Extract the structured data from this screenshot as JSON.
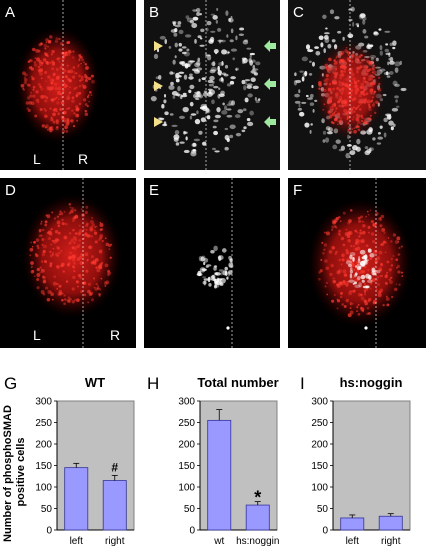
{
  "panels": [
    {
      "label": "A",
      "channel": "red"
    },
    {
      "label": "B",
      "channel": "white"
    },
    {
      "label": "C",
      "channel": "merge"
    },
    {
      "label": "D",
      "channel": "red"
    },
    {
      "label": "E",
      "channel": "white"
    },
    {
      "label": "F",
      "channel": "merge"
    }
  ],
  "orientation": {
    "left": "L",
    "right": "R"
  },
  "colors": {
    "red": "#e0201c",
    "bar": "#9999ff",
    "plot_bg": "#c0c0c0",
    "arrowhead": "#f5e08a",
    "arrow": "#9fe89f"
  },
  "chart_labels": {
    "g": "G",
    "h": "H",
    "i": "I"
  },
  "y_axis_label": [
    "Number of phosphoSMAD",
    "positive cells"
  ],
  "chart_data": [
    {
      "type": "bar",
      "title": "WT",
      "categories": [
        "left",
        "right"
      ],
      "values": [
        145,
        115
      ],
      "errors": [
        10,
        12
      ],
      "ylim": [
        0,
        300
      ],
      "yticks": [
        0,
        50,
        100,
        150,
        200,
        250,
        300
      ],
      "annotations": [
        "",
        "#"
      ],
      "grid": false
    },
    {
      "type": "bar",
      "title": "Total number",
      "categories": [
        "wt",
        "hs:noggin"
      ],
      "values": [
        255,
        58
      ],
      "errors": [
        25,
        8
      ],
      "ylim": [
        0,
        300
      ],
      "yticks": [
        0,
        50,
        100,
        150,
        200,
        250,
        300
      ],
      "annotations": [
        "",
        "*"
      ],
      "grid": false
    },
    {
      "type": "bar",
      "title": "hs:noggin",
      "categories": [
        "left",
        "right"
      ],
      "values": [
        28,
        32
      ],
      "errors": [
        7,
        6
      ],
      "ylim": [
        0,
        300
      ],
      "yticks": [
        0,
        50,
        100,
        150,
        200,
        250,
        300
      ],
      "annotations": [
        "",
        ""
      ],
      "grid": false
    }
  ]
}
